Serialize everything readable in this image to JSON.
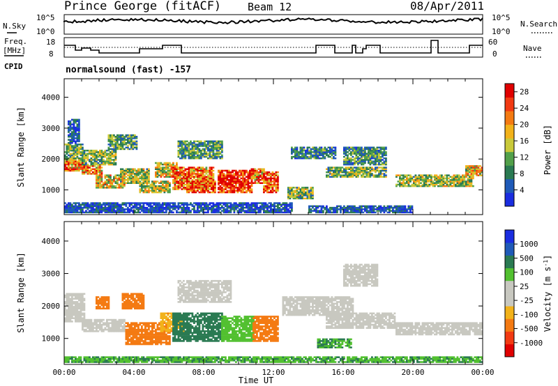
{
  "header": {
    "station": "Prince George (fitACF)",
    "beam": "Beam 12",
    "date": "08/Apr/2011"
  },
  "aux_panels": {
    "nsky_label": "N.Sky",
    "nsky_ticks": [
      "10^5",
      "10^0"
    ],
    "nsearch_label": "N.Search",
    "nsearch_ticks": [
      "10^5",
      "10^0"
    ],
    "freq_label_1": "Freq.",
    "freq_label_2": "[MHz]",
    "freq_ticks": [
      "18",
      "8"
    ],
    "nave_label": "Nave",
    "nave_ticks": [
      "60",
      "0"
    ],
    "cpid_label": "CPID",
    "cpid_text": "normalsound (fast) -157"
  },
  "colors": {
    "power": [
      "#1a2de0",
      "#1f5ab8",
      "#2a7a52",
      "#52a04a",
      "#c9c93a",
      "#f2b21a",
      "#f47a12",
      "#f23a12",
      "#e00000"
    ],
    "velocity": [
      "#e00000",
      "#f23a12",
      "#f47a12",
      "#f2b21a",
      "#c8c8c0",
      "#c8c8c0",
      "#52c030",
      "#2a7a52",
      "#1f5ab8",
      "#1a2de0"
    ]
  },
  "chart_data": [
    {
      "type": "heatmap",
      "panel": "power",
      "ylabel": "Slant Range [km]",
      "y_ticks": [
        1000,
        2000,
        3000,
        4000
      ],
      "ylim": [
        200,
        4600
      ],
      "xlim": [
        0,
        24
      ],
      "colorbar_label": "Power [dB]",
      "colorbar_ticks": [
        "4",
        "8",
        "12",
        "16",
        "20",
        "24",
        "28"
      ],
      "colorbar_range": [
        0,
        30
      ],
      "regions": [
        {
          "t0": 0.0,
          "t1": 1.0,
          "r0": 1600,
          "r1": 1950,
          "v": 22
        },
        {
          "t0": 0.0,
          "t1": 1.0,
          "r0": 1950,
          "r1": 2500,
          "v": 12
        },
        {
          "t0": 0.2,
          "t1": 0.8,
          "r0": 2500,
          "r1": 3300,
          "v": 5
        },
        {
          "t0": 1.0,
          "t1": 2.2,
          "r0": 1500,
          "r1": 1800,
          "v": 20
        },
        {
          "t0": 1.0,
          "t1": 3.0,
          "r0": 1800,
          "r1": 2300,
          "v": 13
        },
        {
          "t0": 1.8,
          "t1": 3.5,
          "r0": 1050,
          "r1": 1500,
          "v": 17
        },
        {
          "t0": 2.5,
          "t1": 4.2,
          "r0": 2300,
          "r1": 2800,
          "v": 10
        },
        {
          "t0": 3.2,
          "t1": 4.8,
          "r0": 1200,
          "r1": 1700,
          "v": 14
        },
        {
          "t0": 4.3,
          "t1": 6.0,
          "r0": 900,
          "r1": 1300,
          "v": 15
        },
        {
          "t0": 5.2,
          "t1": 6.4,
          "r0": 1400,
          "r1": 1900,
          "v": 16
        },
        {
          "t0": 6.2,
          "t1": 8.5,
          "r0": 1000,
          "r1": 1750,
          "v": 22
        },
        {
          "t0": 7.0,
          "t1": 8.6,
          "r0": 900,
          "r1": 1300,
          "v": 26
        },
        {
          "t0": 8.8,
          "t1": 10.7,
          "r0": 900,
          "r1": 1650,
          "v": 29
        },
        {
          "t0": 10.7,
          "t1": 11.4,
          "r0": 1200,
          "r1": 1700,
          "v": 22
        },
        {
          "t0": 11.4,
          "t1": 12.2,
          "r0": 900,
          "r1": 1600,
          "v": 25
        },
        {
          "t0": 6.5,
          "t1": 9.0,
          "r0": 2000,
          "r1": 2600,
          "v": 10
        },
        {
          "t0": 12.8,
          "t1": 14.2,
          "r0": 700,
          "r1": 1100,
          "v": 13
        },
        {
          "t0": 13.0,
          "t1": 15.5,
          "r0": 2000,
          "r1": 2400,
          "v": 8
        },
        {
          "t0": 15.0,
          "t1": 18.5,
          "r0": 1400,
          "r1": 1750,
          "v": 12
        },
        {
          "t0": 16.0,
          "t1": 18.5,
          "r0": 1800,
          "r1": 2400,
          "v": 9
        },
        {
          "t0": 19.0,
          "t1": 23.5,
          "r0": 1100,
          "r1": 1500,
          "v": 14
        },
        {
          "t0": 23.0,
          "t1": 24.0,
          "r0": 1450,
          "r1": 1800,
          "v": 18
        },
        {
          "t0": 0.0,
          "t1": 13.0,
          "r0": 250,
          "r1": 600,
          "v": 4
        },
        {
          "t0": 14.0,
          "t1": 20.0,
          "r0": 250,
          "r1": 500,
          "v": 5
        }
      ]
    },
    {
      "type": "heatmap",
      "panel": "velocity",
      "ylabel": "Slant Range [km]",
      "y_ticks": [
        1000,
        2000,
        3000,
        4000
      ],
      "ylim": [
        200,
        4600
      ],
      "xlim": [
        0,
        24
      ],
      "x_ticks": [
        "00:00",
        "04:00",
        "08:00",
        "12:00",
        "16:00",
        "20:00",
        "00:00"
      ],
      "xlabel": "Time UT",
      "colorbar_label": "Velocity [m s^-1]",
      "colorbar_ticks": [
        "1000",
        "500",
        "100",
        "25",
        "-25",
        "-100",
        "-500",
        "-1000"
      ],
      "regions": [
        {
          "t0": 0.0,
          "t1": 1.2,
          "r0": 1500,
          "r1": 2400,
          "v": 0
        },
        {
          "t0": 1.0,
          "t1": 3.5,
          "r0": 1200,
          "r1": 1600,
          "v": 0
        },
        {
          "t0": 1.8,
          "t1": 2.6,
          "r0": 1900,
          "r1": 2300,
          "v": -150
        },
        {
          "t0": 3.3,
          "t1": 4.5,
          "r0": 1900,
          "r1": 2400,
          "v": -200
        },
        {
          "t0": 3.5,
          "t1": 6.0,
          "r0": 800,
          "r1": 1500,
          "v": -200
        },
        {
          "t0": 5.5,
          "t1": 6.8,
          "r0": 1200,
          "r1": 1800,
          "v": -80
        },
        {
          "t0": 6.2,
          "t1": 9.0,
          "r0": 900,
          "r1": 1800,
          "v": 150
        },
        {
          "t0": 9.0,
          "t1": 10.8,
          "r0": 900,
          "r1": 1700,
          "v": 60
        },
        {
          "t0": 10.8,
          "t1": 12.2,
          "r0": 900,
          "r1": 1700,
          "v": -150
        },
        {
          "t0": 6.5,
          "t1": 9.5,
          "r0": 2100,
          "r1": 2800,
          "v": 0
        },
        {
          "t0": 12.5,
          "t1": 16.5,
          "r0": 1700,
          "r1": 2300,
          "v": 0
        },
        {
          "t0": 15.0,
          "t1": 19.0,
          "r0": 1300,
          "r1": 1800,
          "v": 0
        },
        {
          "t0": 19.0,
          "t1": 24.0,
          "r0": 1100,
          "r1": 1500,
          "v": 0
        },
        {
          "t0": 14.5,
          "t1": 16.5,
          "r0": 700,
          "r1": 1000,
          "v": 100
        },
        {
          "t0": 16.0,
          "t1": 18.0,
          "r0": 2600,
          "r1": 3300,
          "v": 0
        },
        {
          "t0": 0.0,
          "t1": 24.0,
          "r0": 250,
          "r1": 450,
          "v": 90
        }
      ]
    }
  ]
}
